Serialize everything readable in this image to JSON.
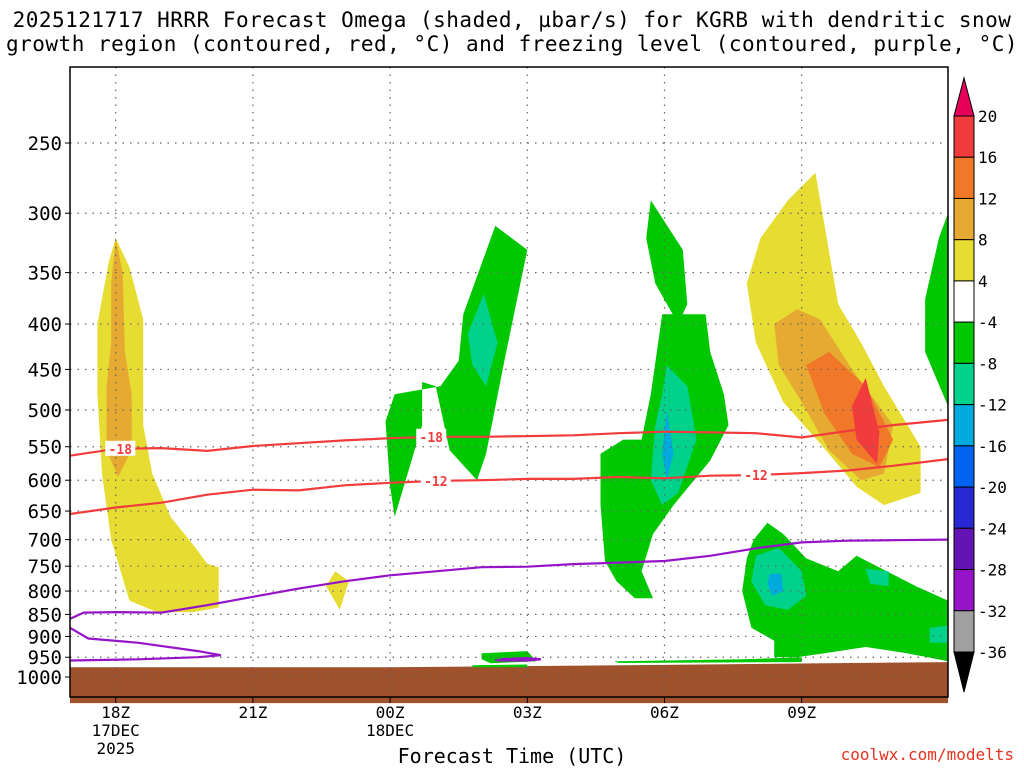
{
  "title_line1": "2025121717 HRRR Forecast Omega (shaded, µbar/s) for KGRB with dendritic snow",
  "title_line2": "growth region (contoured, red, °C) and freezing level (contoured, purple, °C)",
  "xlabel": "Forecast Time (UTC)",
  "credit": "coolwx.com/modelts",
  "chart_data": {
    "type": "heatmap",
    "title": "2025121717 HRRR Forecast Omega (shaded, µbar/s) for KGRB with dendritic snow growth region (contoured, red, °C) and freezing level (contoured, purple, °C)",
    "xlabel": "Forecast Time (UTC)",
    "ylabel": "",
    "y_scale": "log-pressure (inverted)",
    "xlim_hours": [
      17,
      36.2
    ],
    "ylim": [
      1000,
      200
    ],
    "grid": true,
    "x_ticks": [
      {
        "h": 18,
        "lines": [
          "18Z",
          "17DEC",
          "2025"
        ]
      },
      {
        "h": 21,
        "lines": [
          "21Z"
        ]
      },
      {
        "h": 24,
        "lines": [
          "00Z",
          "18DEC"
        ]
      },
      {
        "h": 27,
        "lines": [
          "03Z"
        ]
      },
      {
        "h": 30,
        "lines": [
          "06Z"
        ]
      },
      {
        "h": 33,
        "lines": [
          "09Z"
        ]
      }
    ],
    "y_ticks": [
      {
        "p": 250,
        "label": "250"
      },
      {
        "p": 300,
        "label": "300"
      },
      {
        "p": 350,
        "label": "350"
      },
      {
        "p": 400,
        "label": "400"
      },
      {
        "p": 450,
        "label": "450"
      },
      {
        "p": 500,
        "label": "500"
      },
      {
        "p": 550,
        "label": "550"
      },
      {
        "p": 600,
        "label": "600"
      },
      {
        "p": 650,
        "label": "650"
      },
      {
        "p": 700,
        "label": "700"
      },
      {
        "p": 750,
        "label": "750"
      },
      {
        "p": 800,
        "label": "800"
      },
      {
        "p": 850,
        "label": "850"
      },
      {
        "p": 900,
        "label": "900"
      },
      {
        "p": 950,
        "label": "950"
      },
      {
        "p": 1000,
        "label": "1000"
      }
    ],
    "colorbar": {
      "labels": [
        "20",
        "16",
        "12",
        "8",
        "4",
        "-4",
        "-8",
        "-12",
        "-16",
        "-20",
        "-24",
        "-28",
        "-32",
        "-36"
      ],
      "colors": [
        "#e6005a",
        "#f03c3c",
        "#f07828",
        "#e6aa32",
        "#e6dc32",
        "#ffffff",
        "#00c800",
        "#00d28c",
        "#00aadc",
        "#0064f0",
        "#2828d2",
        "#6414b4",
        "#9614c8",
        "#a0a0a0",
        "#000000"
      ]
    },
    "fill_colors": {
      "omega_pos_4_8": "#e6dc32",
      "omega_pos_8_12": "#e6aa32",
      "omega_pos_12_16": "#f07828",
      "omega_pos_16_20": "#f03c3c",
      "omega_neg_4_8": "#00c800",
      "omega_neg_8_12": "#00d28c",
      "omega_neg_12_16": "#00aadc",
      "terrain": "#a0522d",
      "dgz_contour": "#f03c3c",
      "freezing_contour": "#9614c8"
    },
    "series": [
      {
        "name": "-18",
        "type": "contour",
        "points": [
          [
            17,
            563
          ],
          [
            18,
            553
          ],
          [
            19,
            552
          ],
          [
            20,
            556
          ],
          [
            21,
            549
          ],
          [
            22,
            545
          ],
          [
            23,
            541
          ],
          [
            24,
            538
          ],
          [
            25,
            536
          ],
          [
            26,
            536
          ],
          [
            27,
            535
          ],
          [
            28,
            534
          ],
          [
            29,
            531
          ],
          [
            30,
            529
          ],
          [
            31,
            530
          ],
          [
            32,
            531
          ],
          [
            33,
            537
          ],
          [
            34,
            528
          ],
          [
            35,
            520
          ],
          [
            36.2,
            513
          ]
        ]
      },
      {
        "name": "-12",
        "type": "contour",
        "points": [
          [
            17,
            655
          ],
          [
            18,
            644
          ],
          [
            19,
            636
          ],
          [
            20,
            623
          ],
          [
            21,
            615
          ],
          [
            22,
            616
          ],
          [
            23,
            608
          ],
          [
            24,
            604
          ],
          [
            25,
            601
          ],
          [
            26,
            600
          ],
          [
            27,
            598
          ],
          [
            28,
            598
          ],
          [
            29,
            595
          ],
          [
            30,
            597
          ],
          [
            31,
            593
          ],
          [
            32,
            592
          ],
          [
            33,
            589
          ],
          [
            34,
            585
          ],
          [
            35,
            578
          ],
          [
            36.2,
            568
          ]
        ]
      },
      {
        "name": "0",
        "type": "contour",
        "points": [
          [
            17,
            860
          ],
          [
            17.3,
            846
          ],
          [
            18,
            845
          ],
          [
            19,
            846
          ],
          [
            20,
            830
          ],
          [
            21,
            812
          ],
          [
            22,
            795
          ],
          [
            23,
            780
          ],
          [
            24,
            768
          ],
          [
            25,
            760
          ],
          [
            26,
            752
          ],
          [
            27,
            751
          ],
          [
            28,
            746
          ],
          [
            29,
            743
          ],
          [
            30,
            740
          ],
          [
            31,
            730
          ],
          [
            32,
            716
          ],
          [
            33,
            705
          ],
          [
            34,
            702
          ],
          [
            35,
            701
          ],
          [
            36.2,
            700
          ]
        ]
      }
    ]
  }
}
